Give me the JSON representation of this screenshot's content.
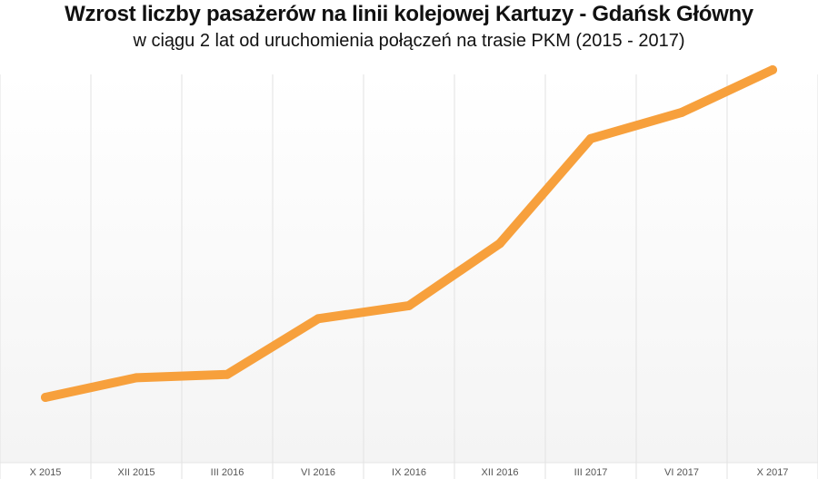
{
  "chart_data": {
    "type": "line",
    "title": "Wzrost liczby pasażerów na linii kolejowej Kartuzy - Gdańsk Główny",
    "subtitle": "w ciągu 2 lat od uruchomienia połączeń na trasie PKM (2015 - 2017)",
    "categories": [
      "X 2015",
      "XII 2015",
      "III 2016",
      "VI 2016",
      "IX 2016",
      "XII 2016",
      "III 2017",
      "VI 2017",
      "X 2017"
    ],
    "series": [
      {
        "values": [
          0,
          6,
          7,
          24,
          28,
          47,
          79,
          87,
          100
        ]
      }
    ],
    "ylim": [
      0,
      100
    ],
    "grid": "vertical",
    "line_color": "#f7a03c"
  }
}
